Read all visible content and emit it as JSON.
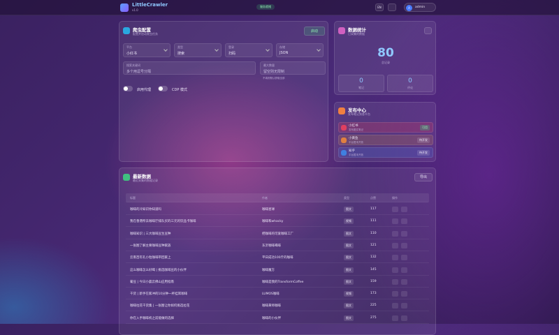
{
  "header": {
    "title": "LittleCrawler",
    "version": "v1.0",
    "status": "服务就绪",
    "lang": "EN",
    "avatar": "A",
    "user": "admin"
  },
  "config": {
    "title": "爬虫配置",
    "subtitle": "配置并启动爬虫任务",
    "start": "启动",
    "fields": [
      {
        "label": "平台",
        "value": "小红书"
      },
      {
        "label": "类型",
        "value": "搜索"
      },
      {
        "label": "登录",
        "value": "扫码"
      },
      {
        "label": "存储",
        "value": "JSON"
      }
    ],
    "keywords": {
      "label": "搜索关键词",
      "placeholder": "多个用逗号分隔"
    },
    "max": {
      "label": "最大数量",
      "placeholder": "留空则无限制",
      "hint": "不填则默认获取全部"
    },
    "toggles": [
      "启用代理",
      "CDP 模式"
    ]
  },
  "stats": {
    "title": "数据统计",
    "subtitle": "已采集的数据",
    "total": 80,
    "total_label": "总记录",
    "items": [
      {
        "value": 0,
        "label": "笔记"
      },
      {
        "value": 0,
        "label": "评论"
      }
    ]
  },
  "publish": {
    "title": "发布中心",
    "subtitle": "发布笔记到各平台",
    "items": [
      {
        "name": "小红书",
        "desc": "发布图文笔记",
        "badge": "可用"
      },
      {
        "name": "小黄鱼",
        "desc": "平台暂未开放",
        "badge": "待开发"
      },
      {
        "name": "知乎",
        "desc": "平台暂未开放",
        "badge": "待开发"
      }
    ]
  },
  "table": {
    "title": "最新数据",
    "subtitle": "最近采集的数据记录",
    "export": "导出",
    "columns": [
      "标题",
      "作者",
      "类型",
      "点赞",
      "操作"
    ],
    "rows": [
      [
        "咖啡的冷知识你知道吗",
        "咖啡星球",
        "图文",
        "117"
      ],
      [
        "我在香港所去咖啡厅排队买的三元的饮品卡咖啡",
        "咖啡和whacky",
        "视频",
        "111"
      ],
      [
        "咖啡知识 | 三大咖啡豆生豆种",
        "把咖啡的可爱咖啡工厂",
        "图文",
        "110"
      ],
      [
        "一张图了解主要咖啡豆种家族",
        "东沂咖啡喝啡",
        "图文",
        "121"
      ],
      [
        "云南百年孔小粒咖啡带回家上",
        "平日成功100斤的咖啡",
        "图文",
        "132"
      ],
      [
        "这么咖啡怎么好喝 | 挑选咖啡豆的小伙伴",
        "咖啡魔方",
        "图文",
        "145"
      ],
      [
        "葡豆 | 今日小晨云佛山应用指南",
        "咖啡是我的TransformCoffee",
        "图文",
        "159"
      ],
      [
        "干货 | 新手在家冲的10分钟一杯挂耳咖啡",
        "LUMOS咖啡",
        "视频",
        "173"
      ],
      [
        "咖啡拉花干货集 | 一张图让你如何挑选拉花",
        "咖啡黄师咖啡",
        "图文",
        "225"
      ],
      [
        "你在入手咖啡机之前能做的选择",
        "咖啡的小伙伴",
        "图文",
        "275"
      ]
    ]
  }
}
